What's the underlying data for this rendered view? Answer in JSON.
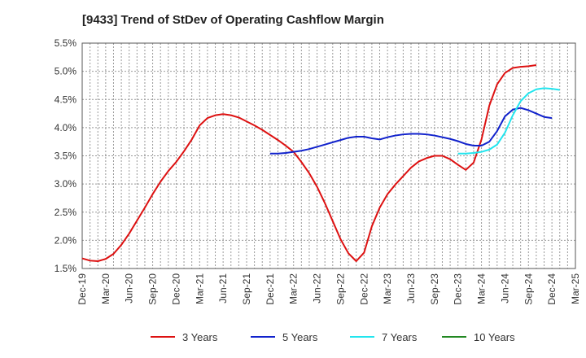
{
  "chart_data": {
    "type": "line",
    "title": "[9433]  Trend of StDev of Operating Cashflow Margin",
    "xlabel": "",
    "ylabel": "",
    "ylim": [
      1.5,
      5.5
    ],
    "y_ticks": [
      {
        "value": 1.5,
        "label": "1.5%"
      },
      {
        "value": 2.0,
        "label": "2.0%"
      },
      {
        "value": 2.5,
        "label": "2.5%"
      },
      {
        "value": 3.0,
        "label": "3.0%"
      },
      {
        "value": 3.5,
        "label": "3.5%"
      },
      {
        "value": 4.0,
        "label": "4.0%"
      },
      {
        "value": 4.5,
        "label": "4.5%"
      },
      {
        "value": 5.0,
        "label": "5.0%"
      },
      {
        "value": 5.5,
        "label": "5.5%"
      }
    ],
    "x_ticks": [
      "Dec-19",
      "Mar-20",
      "Jun-20",
      "Sep-20",
      "Dec-20",
      "Mar-21",
      "Jun-21",
      "Sep-21",
      "Dec-21",
      "Mar-22",
      "Jun-22",
      "Sep-22",
      "Dec-22",
      "Mar-23",
      "Jun-23",
      "Sep-23",
      "Dec-23",
      "Mar-24",
      "Jun-24",
      "Sep-24",
      "Dec-24",
      "Mar-25"
    ],
    "grid": true,
    "legend_position": "bottom",
    "series": [
      {
        "name": "3 Years",
        "color": "#dd1111",
        "start_month": 0,
        "values": [
          1.68,
          1.64,
          1.63,
          1.67,
          1.76,
          1.92,
          2.12,
          2.35,
          2.58,
          2.82,
          3.04,
          3.23,
          3.39,
          3.58,
          3.79,
          4.04,
          4.17,
          4.22,
          4.24,
          4.22,
          4.18,
          4.11,
          4.04,
          3.96,
          3.87,
          3.78,
          3.68,
          3.57,
          3.39,
          3.19,
          2.95,
          2.66,
          2.34,
          2.02,
          1.77,
          1.63,
          1.78,
          2.25,
          2.58,
          2.82,
          2.99,
          3.14,
          3.29,
          3.4,
          3.46,
          3.5,
          3.5,
          3.44,
          3.34,
          3.25,
          3.38,
          3.79,
          4.39,
          4.77,
          4.97,
          5.06,
          5.08,
          5.09,
          5.11
        ]
      },
      {
        "name": "5 Years",
        "color": "#1122cc",
        "start_month": 24,
        "values": [
          3.54,
          3.54,
          3.55,
          3.57,
          3.59,
          3.62,
          3.66,
          3.7,
          3.74,
          3.78,
          3.82,
          3.84,
          3.84,
          3.81,
          3.79,
          3.83,
          3.86,
          3.88,
          3.89,
          3.89,
          3.88,
          3.86,
          3.83,
          3.8,
          3.76,
          3.71,
          3.68,
          3.68,
          3.75,
          3.94,
          4.2,
          4.32,
          4.35,
          4.31,
          4.25,
          4.19,
          4.17
        ]
      },
      {
        "name": "7 Years",
        "color": "#22e5ee",
        "start_month": 48,
        "values": [
          3.54,
          3.54,
          3.55,
          3.57,
          3.61,
          3.7,
          3.91,
          4.22,
          4.47,
          4.61,
          4.68,
          4.7,
          4.69,
          4.67
        ]
      },
      {
        "name": "10 Years",
        "color": "#228822",
        "start_month": 60,
        "values": []
      }
    ]
  }
}
